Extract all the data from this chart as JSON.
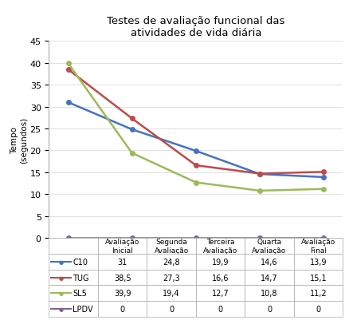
{
  "title": "Testes de avaliação funcional das\natividades de vida diária",
  "ylabel": "Tempo\n(segundos)",
  "categories": [
    "Avaliação\nInicial",
    "Segunda\nAvaliação",
    "Terceira\nAvaliação",
    "Quarta\nAvaliação",
    "Avaliação\nFinal"
  ],
  "series": [
    {
      "label": "C10",
      "values": [
        31,
        24.8,
        19.9,
        14.6,
        13.9
      ],
      "color": "#4472C4"
    },
    {
      "label": "TUG",
      "values": [
        38.5,
        27.3,
        16.6,
        14.7,
        15.1
      ],
      "color": "#BE4B48"
    },
    {
      "label": "SL5",
      "values": [
        39.9,
        19.4,
        12.7,
        10.8,
        11.2
      ],
      "color": "#9BBB59"
    },
    {
      "label": "LPDV",
      "values": [
        0,
        0,
        0,
        0,
        0
      ],
      "color": "#7F6699"
    }
  ],
  "ylim": [
    0,
    45
  ],
  "yticks": [
    0,
    5,
    10,
    15,
    20,
    25,
    30,
    35,
    40,
    45
  ],
  "bg_color": "#FFFFFF",
  "grid_color": "#D3D3D3",
  "spine_color": "#AAAAAA",
  "table_edge_color": "#AAAAAA",
  "values_display": [
    [
      "31",
      "24,8",
      "19,9",
      "14,6",
      "13,9"
    ],
    [
      "38,5",
      "27,3",
      "16,6",
      "14,7",
      "15,1"
    ],
    [
      "39,9",
      "19,4",
      "12,7",
      "10,8",
      "11,2"
    ],
    [
      "0",
      "0",
      "0",
      "0",
      "0"
    ]
  ]
}
